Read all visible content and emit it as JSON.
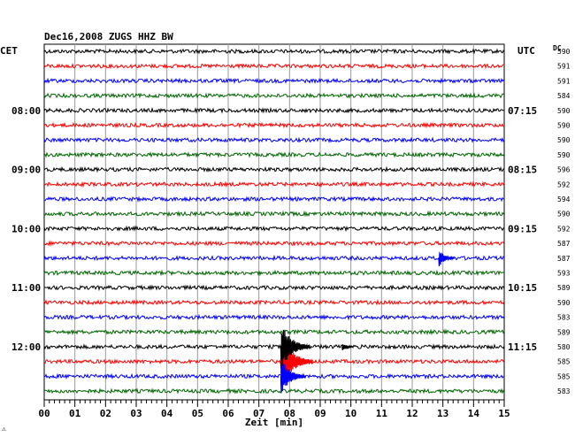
{
  "header": {
    "title": "Dec16,2008   ZUGS HHZ BW",
    "left_timezone": "CET",
    "right_timezone": "UTC",
    "dc_label": "DC",
    "corner_mark": "⚠"
  },
  "chart_data": {
    "type": "line",
    "description_type": "helicorder seismogram",
    "xlabel": "Zeit [min]",
    "xlim": [
      0,
      15
    ],
    "x_ticks": [
      "00",
      "01",
      "02",
      "03",
      "04",
      "05",
      "06",
      "07",
      "08",
      "09",
      "10",
      "11",
      "12",
      "13",
      "14",
      "15"
    ],
    "trace_colors": [
      "#000000",
      "#ff0000",
      "#0000ff",
      "#006600"
    ],
    "left_hour_labels": [
      {
        "row": 4,
        "label": "08:00"
      },
      {
        "row": 8,
        "label": "09:00"
      },
      {
        "row": 12,
        "label": "10:00"
      },
      {
        "row": 16,
        "label": "11:00"
      },
      {
        "row": 20,
        "label": "12:00"
      }
    ],
    "right_hour_labels": [
      {
        "row": 4,
        "label": "07:15"
      },
      {
        "row": 8,
        "label": "08:15"
      },
      {
        "row": 12,
        "label": "09:15"
      },
      {
        "row": 16,
        "label": "10:15"
      },
      {
        "row": 20,
        "label": "11:15"
      }
    ],
    "dc_values": [
      "590",
      "591",
      "591",
      "584",
      "590",
      "590",
      "590",
      "590",
      "596",
      "592",
      "594",
      "590",
      "592",
      "587",
      "587",
      "593",
      "589",
      "590",
      "583",
      "589",
      "580",
      "585",
      "585",
      "583"
    ],
    "events": [
      {
        "row": 21,
        "minute": 7.8,
        "amplitude": 1.0,
        "note": "main event"
      },
      {
        "row": 20,
        "minute": 7.8,
        "amplitude": 0.9
      },
      {
        "row": 22,
        "minute": 7.8,
        "amplitude": 0.7
      },
      {
        "row": 14,
        "minute": 12.95,
        "amplitude": 0.35
      },
      {
        "row": 20,
        "minute": 9.8,
        "amplitude": 0.15
      }
    ]
  }
}
